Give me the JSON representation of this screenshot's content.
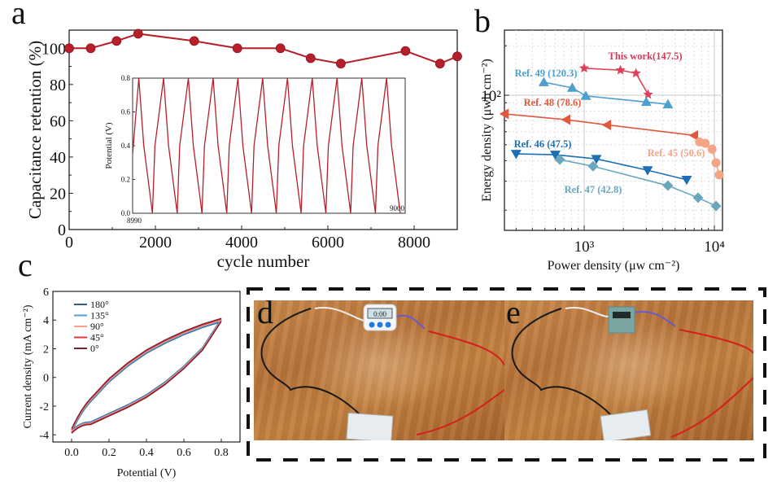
{
  "figure": {
    "panel_labels": [
      "a",
      "b",
      "c",
      "d",
      "e"
    ]
  },
  "chart_data": [
    {
      "panel": "a",
      "type": "line",
      "title": "",
      "xlabel": "cycle number",
      "ylabel": "Capacitance retention (%)",
      "xlim": [
        0,
        9000
      ],
      "ylim": [
        0,
        110
      ],
      "xticks": [
        "0",
        "2000",
        "4000",
        "6000",
        "8000"
      ],
      "yticks": [
        "0",
        "20",
        "40",
        "60",
        "80",
        "100"
      ],
      "series": [
        {
          "name": "Capacitance retention",
          "color": "#b5202a",
          "marker": "circle",
          "x": [
            0,
            500,
            1100,
            1600,
            2900,
            3900,
            4900,
            5600,
            6300,
            7800,
            8600,
            9000
          ],
          "y": [
            100,
            100,
            104,
            108,
            104,
            100,
            100,
            94.5,
            91.5,
            98.5,
            91.5,
            95.5
          ]
        }
      ],
      "inset": {
        "type": "line",
        "ylabel": "Potential (V)",
        "xlim": [
          8990,
          9000
        ],
        "ylim": [
          0,
          0.8
        ],
        "xticks": [
          "8990",
          "9000"
        ],
        "yticks": [
          "0.0",
          "0.2",
          "0.4",
          "0.6",
          "0.8"
        ],
        "color": "#b5202a",
        "cycles": 11,
        "description": "galvanostatic charge-discharge triangular waveform between 0.0 V and 0.8 V"
      }
    },
    {
      "panel": "b",
      "type": "scatter",
      "title": "",
      "xlabel": "Power density (μw cm⁻²)",
      "ylabel": "Energy density (μwh cm⁻²)",
      "xscale": "log",
      "yscale": "log",
      "xlim": [
        200,
        14000
      ],
      "ylim": [
        15,
        250
      ],
      "xticks": [
        "10³",
        "10⁴"
      ],
      "yticks": [
        "10²"
      ],
      "grid": true,
      "series": [
        {
          "name": "This work(147.5)",
          "color": "#e0405a",
          "marker": "star",
          "label_color": "#d93a55",
          "x": [
            1000,
            1900,
            2500,
            3100
          ],
          "y": [
            146,
            142,
            136,
            101
          ]
        },
        {
          "name": "Ref. 49 (120.3)",
          "color": "#4d9fcf",
          "marker": "triangle-up",
          "label_color": "#4d9fcf",
          "x": [
            490,
            810,
            1030,
            3000,
            4400
          ],
          "y": [
            120,
            111,
            99,
            91,
            88
          ]
        },
        {
          "name": "Ref. 48 (78.6)",
          "color": "#e2583f",
          "marker": "triangle-left",
          "label_color": "#e2583f",
          "x": [
            245,
            730,
            1500,
            7000
          ],
          "y": [
            77,
            71,
            66,
            57
          ]
        },
        {
          "name": "Ref. 45 (50.6)",
          "color": "#f3a585",
          "marker": "circle",
          "label_color": "#f3a585",
          "x": [
            7700,
            8500,
            9600,
            10300,
            10900
          ],
          "y": [
            52,
            51,
            47,
            38.8,
            32.8
          ]
        },
        {
          "name": "Ref. 46 (47.5)",
          "color": "#1f6fb5",
          "marker": "triangle-down",
          "label_color": "#1f6fb5",
          "x": [
            300,
            600,
            1240,
            3070,
            6130
          ],
          "y": [
            44,
            43.5,
            41,
            35,
            30.6
          ]
        },
        {
          "name": "Ref. 47 (42.8)",
          "color": "#6aa7bd",
          "marker": "diamond",
          "label_color": "#6aa7bd",
          "x": [
            650,
            1170,
            4400,
            7500,
            10300
          ],
          "y": [
            40.6,
            37,
            28.2,
            23.8,
            21.2
          ]
        }
      ]
    },
    {
      "panel": "c",
      "type": "line",
      "title": "",
      "xlabel": "Potential (V)",
      "ylabel": "Current density (mA cm⁻²)",
      "xlim": [
        -0.1,
        0.9
      ],
      "ylim": [
        -4.5,
        6
      ],
      "xticks": [
        "0.0",
        "0.2",
        "0.4",
        "0.6",
        "0.8"
      ],
      "yticks": [
        "-4",
        "-2",
        "0",
        "2",
        "4",
        "6"
      ],
      "legend_position": "top-left",
      "series": [
        {
          "name": "180°",
          "color": "#2e5d8e"
        },
        {
          "name": "135°",
          "color": "#4f9fd8"
        },
        {
          "name": "90°",
          "color": "#f4a28c"
        },
        {
          "name": "45°",
          "color": "#d9383a"
        },
        {
          "name": "0°",
          "color": "#7a1f2e"
        }
      ],
      "cv_shape": {
        "x": [
          0.0,
          0.1,
          0.2,
          0.3,
          0.4,
          0.5,
          0.6,
          0.7,
          0.8
        ],
        "upper_branch": [
          -3.7,
          -1.6,
          -0.2,
          0.9,
          1.8,
          2.5,
          3.1,
          3.6,
          4.0
        ],
        "lower_branch": [
          -3.8,
          -3.2,
          -2.6,
          -2.0,
          -1.3,
          -0.4,
          0.7,
          2.0,
          4.0
        ]
      }
    }
  ],
  "photos": [
    {
      "panel": "d",
      "description": "circuit with digital timer display connected to supercapacitor device on wooden table",
      "display_text": "0:00"
    },
    {
      "panel": "e",
      "description": "circuit with green digital display connected to supercapacitor device on wooden table"
    }
  ]
}
